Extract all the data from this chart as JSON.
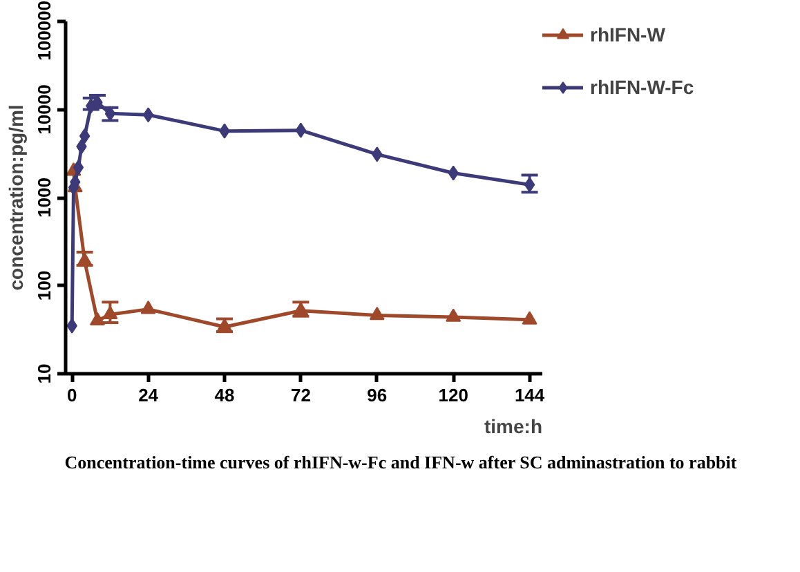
{
  "chart_data": {
    "type": "line",
    "title": "Concentration-time curves of rhIFN-w-Fc and IFN-w after SC adminastration to rabbit",
    "xlabel": "time:h",
    "ylabel": "concentration:pg/ml",
    "log": "y",
    "xlim": [
      -2,
      148
    ],
    "ylim": [
      10,
      100000
    ],
    "xticks": [
      0,
      24,
      48,
      72,
      96,
      120,
      144
    ],
    "yticks": [
      10,
      100,
      1000,
      10000,
      100000
    ],
    "grid": false,
    "legend": "top right",
    "line_style": "solid",
    "series": [
      {
        "name": "rhIFN-W",
        "color": "#a0482a",
        "marker": "triangle",
        "x": [
          0.5,
          1,
          4,
          8,
          12,
          24,
          48,
          72,
          96,
          120,
          144
        ],
        "values": [
          2000,
          1300,
          190,
          40,
          47,
          54,
          34,
          52,
          46,
          44,
          41
        ],
        "errors": [
          null,
          null,
          [
            170,
            240
          ],
          null,
          [
            38,
            65
          ],
          null,
          [
            30,
            42
          ],
          [
            45,
            65
          ],
          null,
          null,
          null
        ]
      },
      {
        "name": "rhIFN-W-Fc",
        "color": "#3c3a78",
        "marker": "diamond",
        "x": [
          0,
          0.5,
          1,
          2,
          3,
          4,
          6,
          8,
          12,
          24,
          48,
          72,
          96,
          120,
          144
        ],
        "values": [
          35,
          1300,
          1500,
          2200,
          3800,
          5000,
          11000,
          12000,
          9000,
          8700,
          5700,
          5800,
          3100,
          1900,
          1400
        ],
        "errors": [
          null,
          null,
          null,
          null,
          null,
          null,
          [
            10000,
            13500
          ],
          [
            10500,
            14500
          ],
          [
            7500,
            10500
          ],
          null,
          null,
          null,
          null,
          null,
          [
            1150,
            1800
          ]
        ]
      }
    ]
  }
}
